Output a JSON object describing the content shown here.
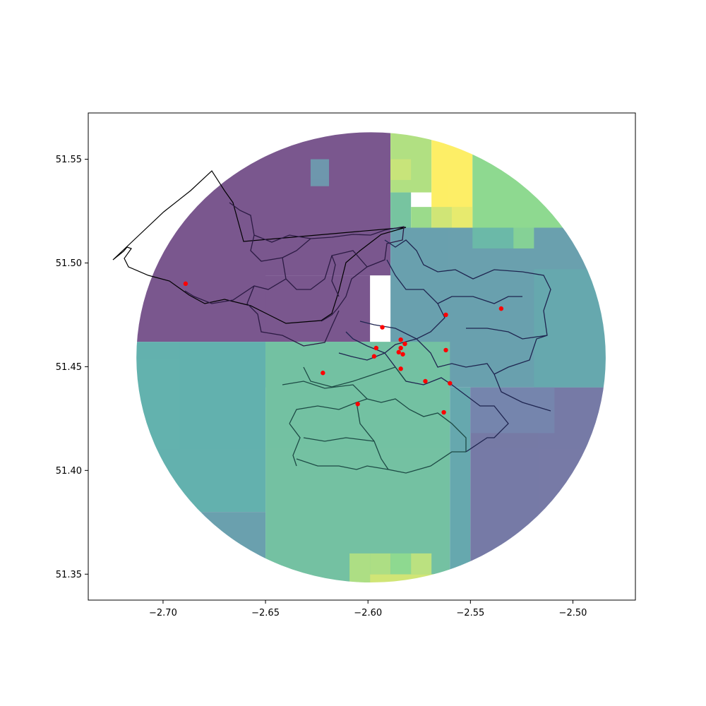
{
  "figure": {
    "xlim": [
      -2.7365,
      -2.4695
    ],
    "ylim": [
      51.3375,
      51.5723
    ]
  },
  "axes": {
    "x_ticks": [
      {
        "value": -2.7,
        "label": "−2.70"
      },
      {
        "value": -2.65,
        "label": "−2.65"
      },
      {
        "value": -2.6,
        "label": "−2.60"
      },
      {
        "value": -2.55,
        "label": "−2.55"
      },
      {
        "value": -2.5,
        "label": "−2.50"
      }
    ],
    "y_ticks": [
      {
        "value": 51.35,
        "label": "51.35"
      },
      {
        "value": 51.4,
        "label": "51.40"
      },
      {
        "value": 51.45,
        "label": "51.45"
      },
      {
        "value": 51.5,
        "label": "51.50"
      },
      {
        "value": 51.55,
        "label": "51.55"
      }
    ]
  },
  "raster": {
    "center": [
      -2.5985,
      51.4545
    ],
    "radius_x": 0.1145,
    "radius_y": 0.1085,
    "colormap": "viridis",
    "opacity": 0.7,
    "zones": [
      {
        "x0": -2.74,
        "x1": -2.589,
        "y0": 51.494,
        "y1": 51.58,
        "level": 0.05
      },
      {
        "x0": -2.74,
        "x1": -2.599,
        "y0": 51.462,
        "y1": 51.494,
        "level": 0.05
      },
      {
        "x0": -2.74,
        "x1": -2.65,
        "y0": 51.462,
        "y1": 51.58,
        "level": 0.05
      },
      {
        "x0": -2.628,
        "x1": -2.619,
        "y0": 51.537,
        "y1": 51.55,
        "level": 0.35
      },
      {
        "x0": -2.589,
        "x1": -2.569,
        "y0": 51.534,
        "y1": 51.58,
        "level": 0.83
      },
      {
        "x0": -2.589,
        "x1": -2.579,
        "y0": 51.54,
        "y1": 51.55,
        "level": 0.88
      },
      {
        "x0": -2.569,
        "x1": -2.549,
        "y0": 51.517,
        "y1": 51.58,
        "level": 1.0
      },
      {
        "x0": -2.549,
        "x1": -2.48,
        "y0": 51.517,
        "y1": 51.58,
        "level": 0.75
      },
      {
        "x0": -2.589,
        "x1": -2.579,
        "y0": 51.517,
        "y1": 51.534,
        "level": 0.62
      },
      {
        "x0": -2.579,
        "x1": -2.569,
        "y0": 51.517,
        "y1": 51.527,
        "level": 0.78
      },
      {
        "x0": -2.569,
        "x1": -2.559,
        "y0": 51.517,
        "y1": 51.527,
        "level": 0.9
      },
      {
        "x0": -2.559,
        "x1": -2.549,
        "y0": 51.517,
        "y1": 51.527,
        "level": 0.95
      },
      {
        "x0": -2.589,
        "x1": -2.48,
        "y0": 51.44,
        "y1": 51.517,
        "level": 0.4
      },
      {
        "x0": -2.549,
        "x1": -2.519,
        "y0": 51.507,
        "y1": 51.517,
        "level": 0.55
      },
      {
        "x0": -2.529,
        "x1": -2.519,
        "y0": 51.507,
        "y1": 51.517,
        "level": 0.7
      },
      {
        "x0": -2.519,
        "x1": -2.48,
        "y0": 51.44,
        "y1": 51.497,
        "level": 0.45
      },
      {
        "x0": -2.74,
        "x1": -2.65,
        "y0": 51.38,
        "y1": 51.462,
        "level": 0.5
      },
      {
        "x0": -2.65,
        "x1": -2.599,
        "y0": 51.44,
        "y1": 51.462,
        "level": 0.6
      },
      {
        "x0": -2.74,
        "x1": -2.65,
        "y0": 51.33,
        "y1": 51.38,
        "level": 0.4
      },
      {
        "x0": -2.65,
        "x1": -2.56,
        "y0": 51.33,
        "y1": 51.462,
        "level": 0.6
      },
      {
        "x0": -2.56,
        "x1": -2.55,
        "y0": 51.33,
        "y1": 51.44,
        "level": 0.45
      },
      {
        "x0": -2.55,
        "x1": -2.48,
        "y0": 51.33,
        "y1": 51.44,
        "level": 0.2
      },
      {
        "x0": -2.55,
        "x1": -2.509,
        "y0": 51.418,
        "y1": 51.44,
        "level": 0.25
      },
      {
        "x0": -2.609,
        "x1": -2.599,
        "y0": 51.33,
        "y1": 51.36,
        "level": 0.82
      },
      {
        "x0": -2.599,
        "x1": -2.56,
        "y0": 51.33,
        "y1": 51.35,
        "level": 0.9
      },
      {
        "x0": -2.599,
        "x1": -2.589,
        "y0": 51.35,
        "y1": 51.36,
        "level": 0.82
      },
      {
        "x0": -2.589,
        "x1": -2.579,
        "y0": 51.35,
        "y1": 51.36,
        "level": 0.75
      },
      {
        "x0": -2.579,
        "x1": -2.569,
        "y0": 51.35,
        "y1": 51.36,
        "level": 0.85
      }
    ]
  },
  "boundaries": {
    "outer_edge_color": "#000000",
    "inner_edge_color": "#1f1f4a",
    "south_edge_color": "#1e4a40"
  },
  "points": {
    "color": "#ff0000",
    "locations": [
      [
        -2.689,
        51.49
      ],
      [
        -2.622,
        51.447
      ],
      [
        -2.605,
        51.432
      ],
      [
        -2.593,
        51.469
      ],
      [
        -2.596,
        51.459
      ],
      [
        -2.597,
        51.455
      ],
      [
        -2.585,
        51.457
      ],
      [
        -2.584,
        51.459
      ],
      [
        -2.583,
        51.456
      ],
      [
        -2.584,
        51.463
      ],
      [
        -2.582,
        51.461
      ],
      [
        -2.584,
        51.449
      ],
      [
        -2.572,
        51.443
      ],
      [
        -2.562,
        51.475
      ],
      [
        -2.562,
        51.458
      ],
      [
        -2.56,
        51.442
      ],
      [
        -2.563,
        51.428
      ],
      [
        -2.535,
        51.478
      ]
    ]
  }
}
